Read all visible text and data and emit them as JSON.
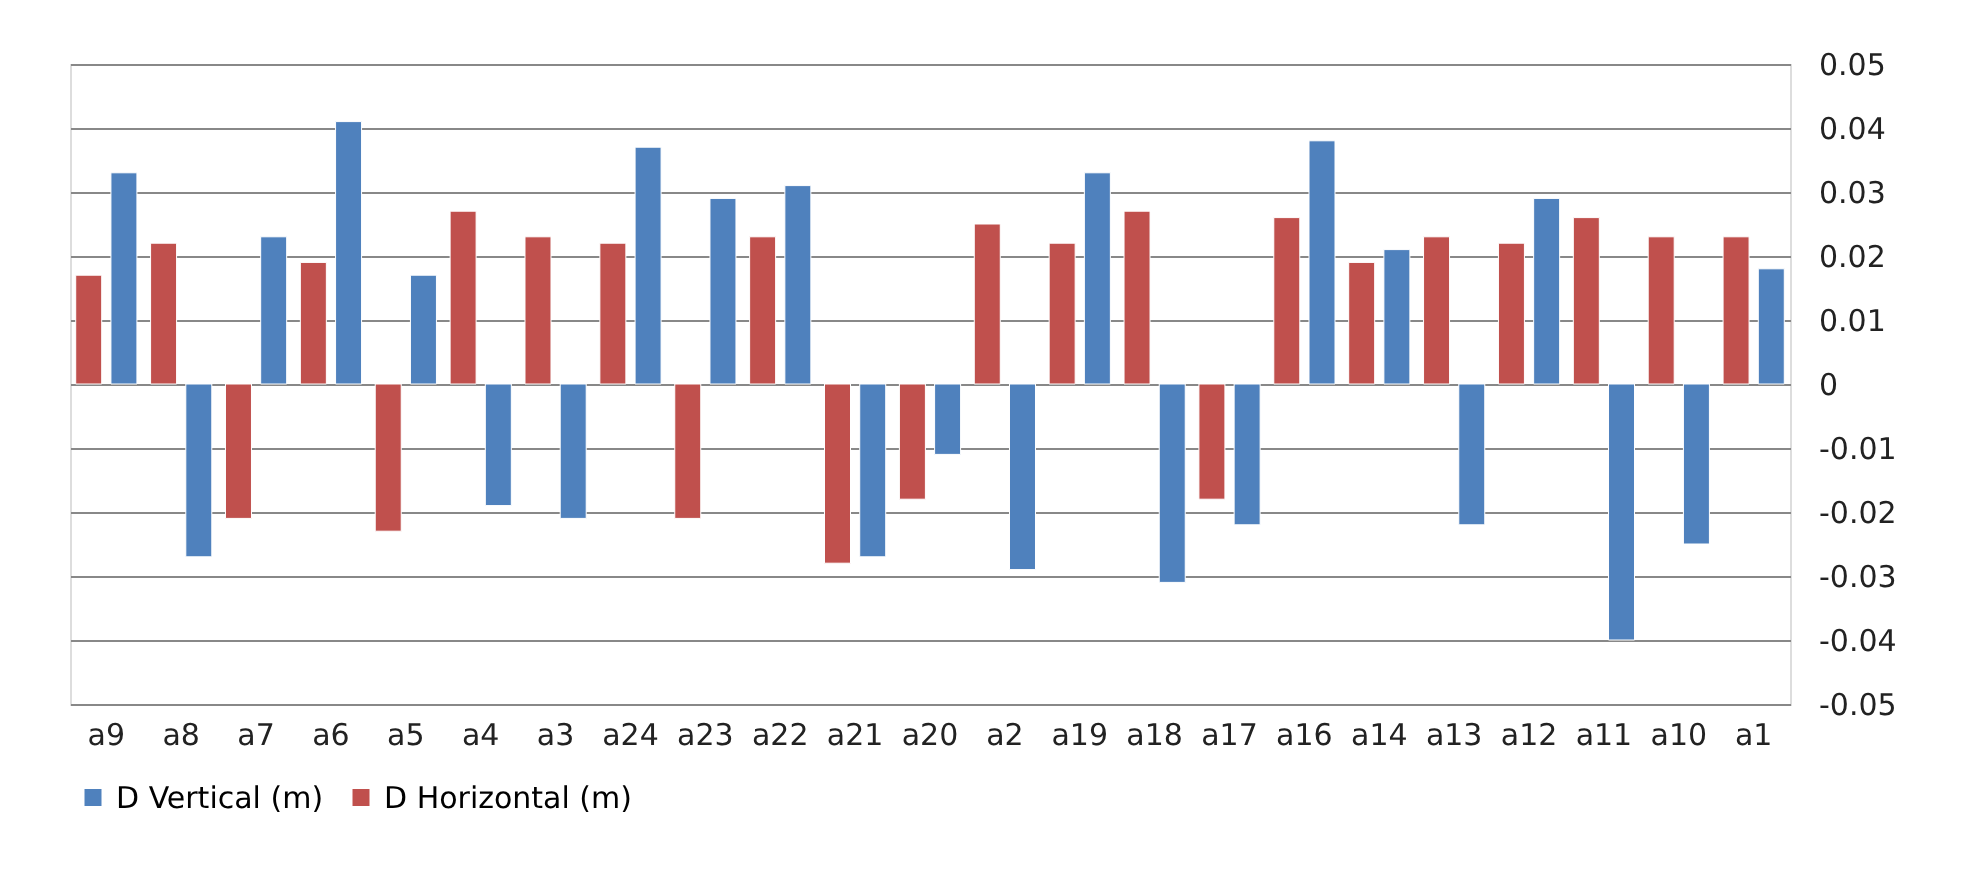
{
  "chart_data": {
    "type": "bar",
    "categories": [
      "a9",
      "a8",
      "a7",
      "a6",
      "a5",
      "a4",
      "a3",
      "a24",
      "a23",
      "a22",
      "a21",
      "a20",
      "a2",
      "a19",
      "a18",
      "a17",
      "a16",
      "a14",
      "a13",
      "a12",
      "a11",
      "a10",
      "a1"
    ],
    "series": [
      {
        "name": "D Vertical (m)",
        "color": "#4f81bd",
        "values": [
          0.033,
          -0.027,
          0.023,
          0.041,
          0.017,
          -0.019,
          -0.021,
          0.037,
          0.029,
          0.031,
          -0.027,
          -0.011,
          -0.029,
          0.033,
          -0.031,
          -0.022,
          0.038,
          0.021,
          -0.022,
          0.029,
          -0.04,
          -0.025,
          0.018
        ]
      },
      {
        "name": "D Horizontal (m)",
        "color": "#c0504d",
        "values": [
          0.017,
          0.022,
          -0.021,
          0.019,
          -0.023,
          0.027,
          0.023,
          0.022,
          -0.021,
          0.023,
          -0.028,
          -0.018,
          0.025,
          0.022,
          0.027,
          -0.018,
          0.026,
          0.019,
          0.023,
          0.022,
          0.026,
          0.023,
          0.023
        ]
      }
    ],
    "ylim": [
      -0.05,
      0.05
    ],
    "yticks": [
      -0.05,
      -0.04,
      -0.03,
      -0.02,
      -0.01,
      0,
      0.01,
      0.02,
      0.03,
      0.04,
      0.05
    ],
    "grid": "y",
    "legend": "bottom"
  }
}
